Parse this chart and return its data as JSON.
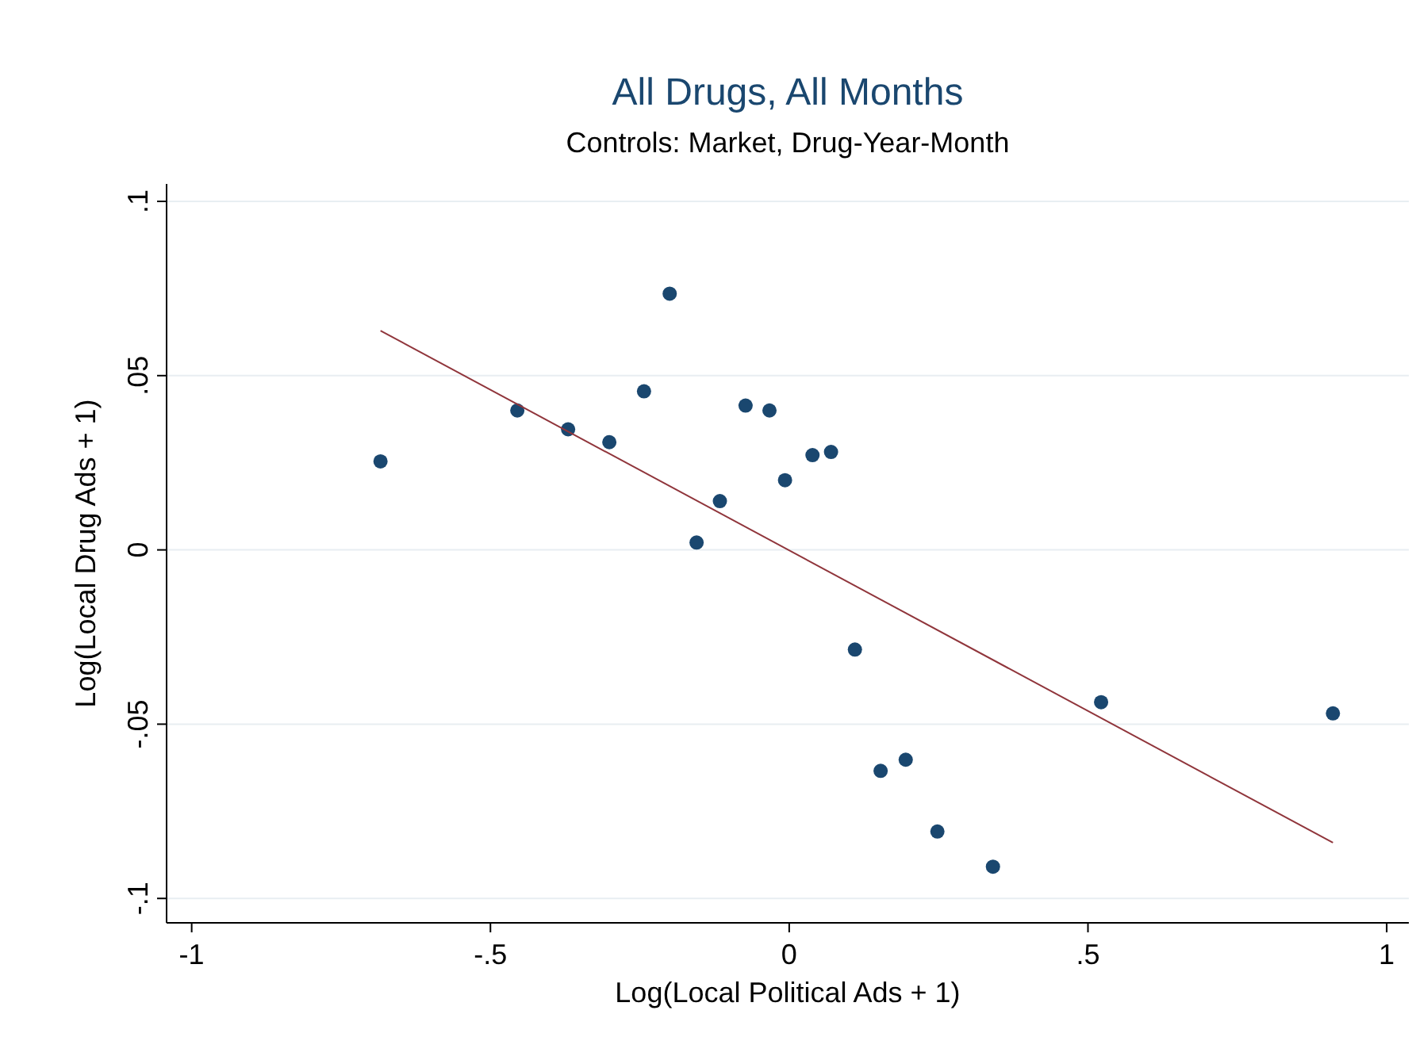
{
  "chart_data": {
    "type": "scatter",
    "title": "All Drugs, All Months",
    "subtitle": "Controls: Market, Drug-Year-Month",
    "xlabel": "Log(Local Political Ads + 1)",
    "ylabel": "Log(Local Drug Ads + 1)",
    "xlim": [
      -1.042,
      1.037
    ],
    "ylim": [
      -0.107,
      0.105
    ],
    "xticks": [
      {
        "value": -1,
        "label": "-1"
      },
      {
        "value": -0.5,
        "label": "-.5"
      },
      {
        "value": 0,
        "label": "0"
      },
      {
        "value": 0.5,
        "label": ".5"
      },
      {
        "value": 1,
        "label": "1"
      }
    ],
    "yticks": [
      {
        "value": -0.1,
        "label": "-.1"
      },
      {
        "value": -0.05,
        "label": "-.05"
      },
      {
        "value": 0,
        "label": "0"
      },
      {
        "value": 0.05,
        "label": ".05"
      },
      {
        "value": 0.1,
        "label": ".1"
      }
    ],
    "grid": "y",
    "series": [
      {
        "marker": "circle",
        "color": "#1a476f",
        "x": [
          -0.684,
          -0.455,
          -0.37,
          -0.301,
          -0.2,
          -0.243,
          -0.155,
          -0.116,
          -0.073,
          -0.033,
          -0.007,
          0.039,
          0.07,
          0.11,
          0.153,
          0.195,
          0.248,
          0.341,
          0.522,
          0.91
        ],
        "values": [
          0.0254,
          0.04,
          0.0346,
          0.0309,
          0.0735,
          0.0455,
          0.0021,
          0.014,
          0.0414,
          0.04,
          0.02,
          0.0272,
          0.0281,
          -0.0286,
          -0.0634,
          -0.0602,
          -0.0808,
          -0.0909,
          -0.0437,
          -0.0469
        ]
      },
      {
        "type": "line",
        "marker": "none",
        "color": "#90353b",
        "x": [
          -0.684,
          0.91
        ],
        "values": [
          0.0629,
          -0.084
        ]
      }
    ]
  }
}
